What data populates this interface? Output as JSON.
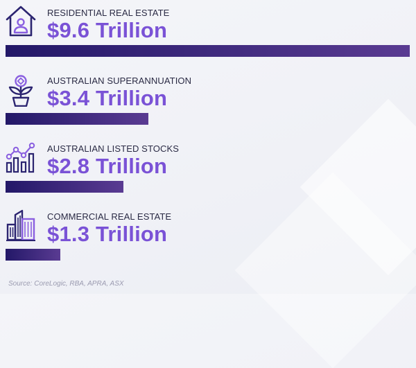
{
  "chart_data": {
    "type": "bar",
    "orientation": "horizontal",
    "categories": [
      "RESIDENTIAL REAL ESTATE",
      "AUSTRALIAN SUPERANNUATION",
      "AUSTRALIAN LISTED STOCKS",
      "COMMERCIAL REAL ESTATE"
    ],
    "values": [
      9.6,
      3.4,
      2.8,
      1.3
    ],
    "value_labels": [
      "$9.6 Trillion",
      "$3.4 Trillion",
      "$2.8 Trillion",
      "$1.3 Trillion"
    ],
    "icons": [
      "house-person-icon",
      "plant-coin-icon",
      "line-bar-chart-icon",
      "buildings-icon"
    ],
    "colors": {
      "bar_start": "#231868",
      "bar_end": "#5a3b92",
      "value_text": "#7a52d6",
      "label_text": "#2a2a44"
    },
    "source": "Source: CoreLogic, RBA, APRA, ASX"
  }
}
